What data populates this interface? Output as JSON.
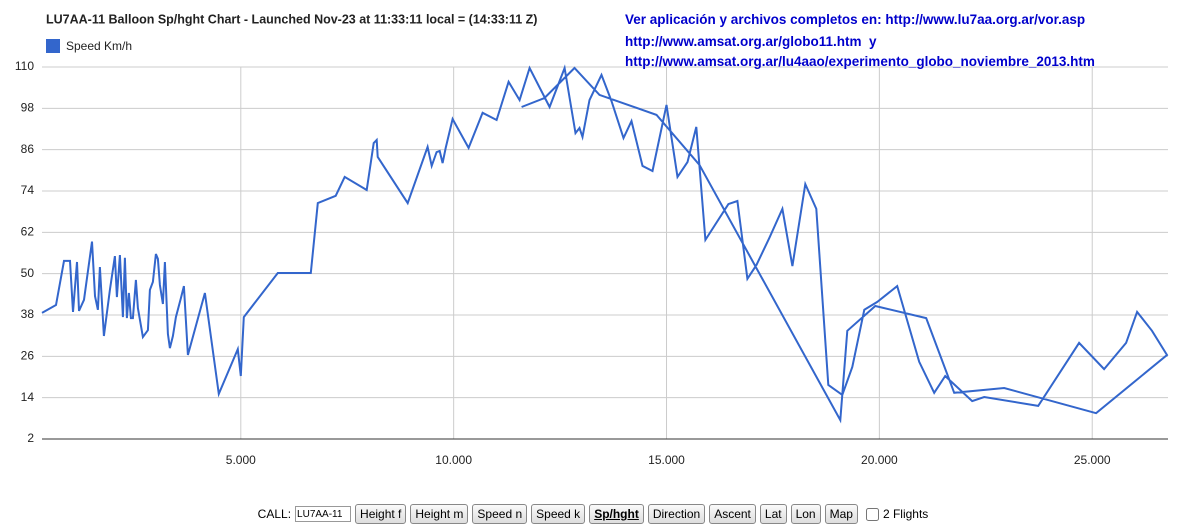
{
  "chart_data": {
    "type": "line",
    "title": "LU7AA-11 Balloon Sp/hght Chart - Launched Nov-23 at 11:33:11 local = (14:33:11 Z)",
    "x": [
      330,
      659,
      846,
      987,
      1058,
      1151,
      1198,
      1316,
      1504,
      1574,
      1644,
      1691,
      1785,
      1926,
      2043,
      2090,
      2161,
      2231,
      2278,
      2325,
      2372,
      2419,
      2466,
      2536,
      2583,
      2700,
      2818,
      2865,
      2935,
      3006,
      3053,
      3100,
      3170,
      3217,
      3287,
      3334,
      3405,
      3475,
      3592,
      3663,
      3757,
      4156,
      4484,
      4930,
      5000,
      5071,
      5869,
      6644,
      6808,
      7230,
      7441,
      7958,
      8122,
      8192,
      8216,
      8920,
      9389,
      9483,
      9600,
      9671,
      9741,
      9812,
      9976,
      10352,
      10680,
      11009,
      11290,
      11549,
      11783,
      12253,
      12605,
      12863,
      12957,
      13027,
      13192,
      13473,
      13708,
      13990,
      14178,
      14436,
      14670,
      14999,
      15257,
      15492,
      15700,
      15914,
      16454,
      16665,
      16900,
      17111,
      17416,
      17721,
      17956,
      18261,
      18519,
      18801,
      19130,
      19364,
      19646,
      19951,
      20420,
      20936,
      21288,
      21546,
      22180,
      22462,
      23730,
      24692,
      25279,
      25795,
      26053,
      26405,
      26757,
      25091,
      22932,
      21758,
      21101,
      19904,
      19247,
      19083,
      15773,
      14764,
      13426,
      12839,
      12135,
      11595
    ],
    "series": [
      {
        "name": "Speed Km/h",
        "color": "#3366cc",
        "values": [
          38.6,
          40.9,
          53.7,
          53.7,
          38.9,
          53.4,
          39.2,
          42.4,
          59.3,
          43.5,
          39.5,
          51.9,
          31.9,
          45.3,
          55.1,
          43.2,
          55.4,
          37.4,
          54.6,
          37.1,
          44.4,
          37.1,
          37.1,
          48.2,
          40.0,
          31.6,
          33.6,
          45.3,
          47.6,
          55.7,
          54.3,
          46.7,
          41.2,
          53.4,
          32.5,
          28.4,
          31.9,
          37.4,
          42.9,
          46.4,
          26.4,
          44.4,
          15.1,
          28.1,
          20.3,
          37.4,
          50.2,
          50.2,
          70.5,
          72.6,
          78.1,
          74.3,
          87.9,
          88.8,
          83.9,
          70.5,
          86.8,
          81.3,
          85.3,
          85.6,
          82.1,
          86.5,
          94.9,
          86.5,
          96.7,
          94.6,
          105.7,
          100.4,
          109.7,
          98.4,
          109.7,
          90.8,
          92.3,
          89.7,
          100.4,
          107.7,
          100.1,
          89.4,
          94.3,
          81.3,
          79.8,
          99.0,
          78.1,
          82.4,
          92.6,
          59.8,
          70.2,
          71.1,
          48.5,
          52.5,
          60.4,
          68.8,
          52.2,
          76.0,
          68.8,
          17.7,
          14.8,
          22.9,
          39.5,
          41.8,
          46.4,
          24.4,
          15.4,
          20.3,
          13.0,
          14.2,
          11.6,
          29.9,
          22.3,
          29.9,
          38.9,
          33.4,
          26.4,
          9.5,
          16.8,
          15.4,
          37.1,
          40.6,
          33.4,
          7.5,
          81.6,
          96.1,
          101.9,
          109.7,
          101.0,
          98.4
        ]
      }
    ],
    "xlim": [
      330,
      26780
    ],
    "xticks": [
      {
        "value": 5000,
        "label": "5.000"
      },
      {
        "value": 10000,
        "label": "10.000"
      },
      {
        "value": 15000,
        "label": "15.000"
      },
      {
        "value": 20000,
        "label": "20.000"
      },
      {
        "value": 25000,
        "label": "25.000"
      }
    ],
    "ylim": [
      2,
      110
    ],
    "yticks": [
      2,
      14,
      26,
      38,
      50,
      62,
      74,
      86,
      98,
      110
    ],
    "grid": true,
    "legend": "top-left"
  },
  "links": [
    "Ver aplicación y archivos completos en: http://www.lu7aa.org.ar/vor.asp",
    "http://www.amsat.org.ar/globo11.htm  y",
    "http://www.amsat.org.ar/lu4aao/experimento_globo_noviembre_2013.htm"
  ],
  "controls": {
    "call_label": "CALL:",
    "call_value": "LU7AA-11",
    "buttons": [
      "Height f",
      "Height m",
      "Speed n",
      "Speed k",
      "Sp/hght",
      "Direction",
      "Ascent",
      "Lat",
      "Lon",
      "Map"
    ],
    "checkbox_label": "2 Flights"
  }
}
